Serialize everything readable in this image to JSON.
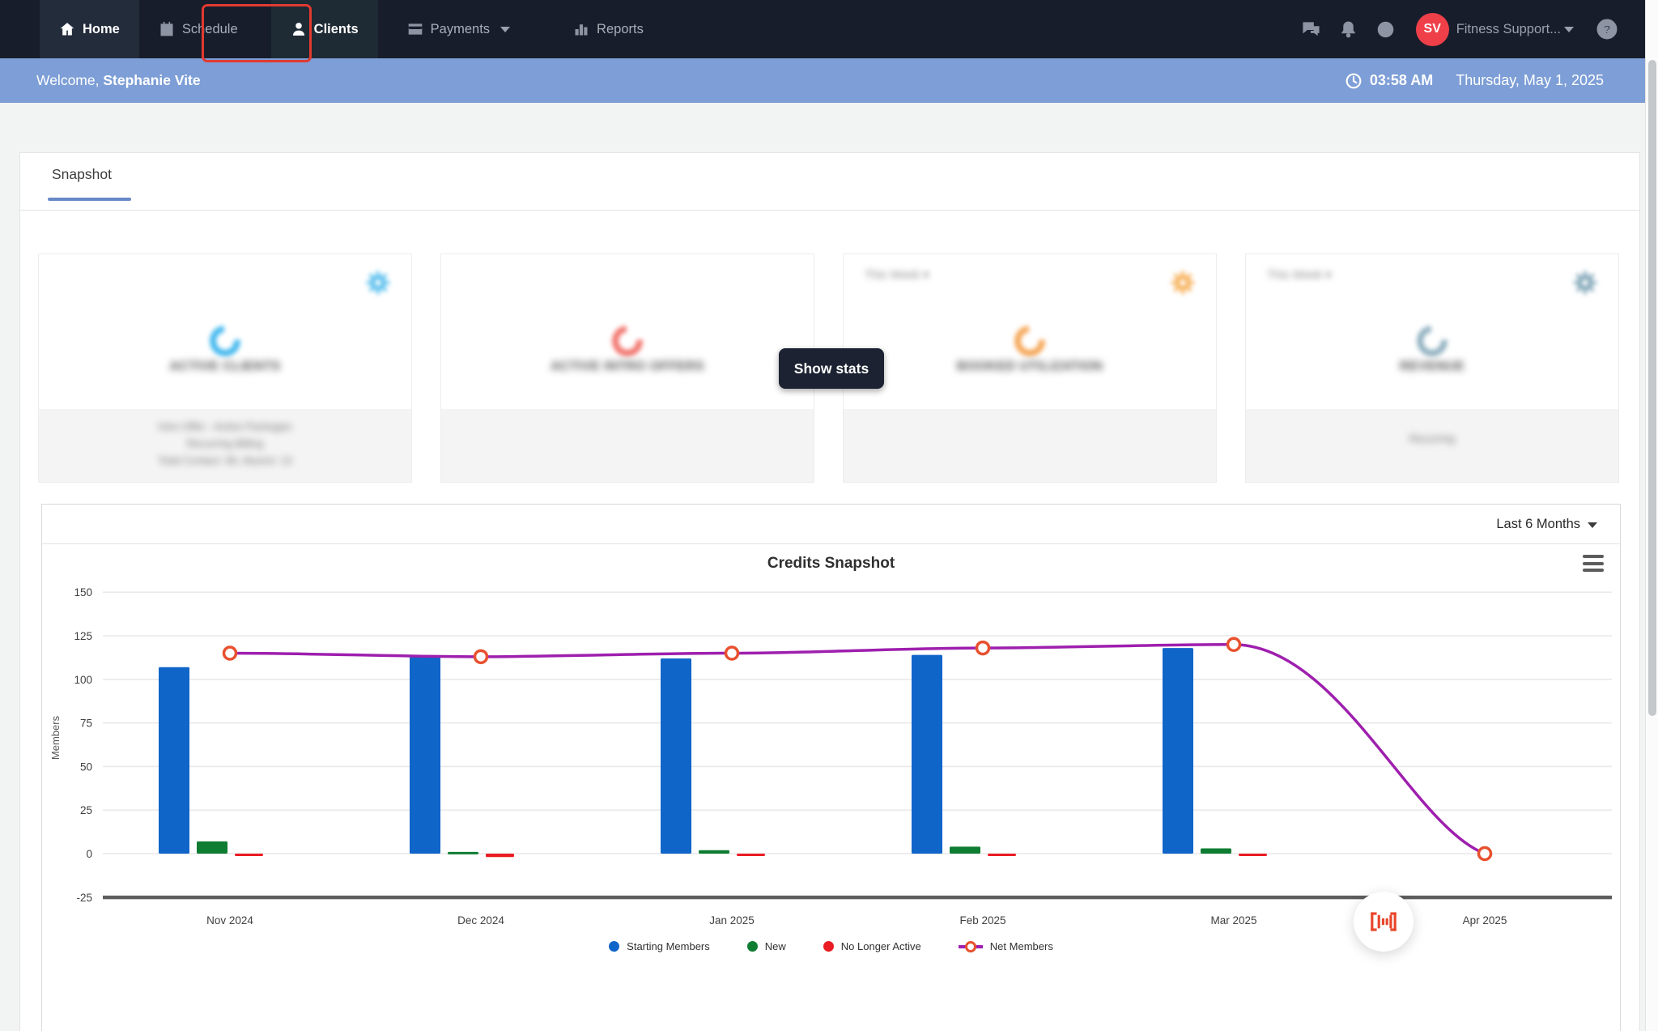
{
  "nav": {
    "items": [
      {
        "label": "Home",
        "icon": "home"
      },
      {
        "label": "Schedule",
        "icon": "calendar"
      },
      {
        "label": "Clients",
        "icon": "person"
      },
      {
        "label": "Payments",
        "icon": "credit-card"
      },
      {
        "label": "Reports",
        "icon": "bar-chart"
      }
    ],
    "user_initials": "SV",
    "user_name": "Fitness Support...",
    "avatar_color": "#ef4049"
  },
  "welcome_bar": {
    "greeting": "Welcome, ",
    "user_name": "Stephanie Vite",
    "time": "03:58 AM",
    "date": "Thursday, May 1, 2025",
    "bg_color": "#7d9ed6"
  },
  "tabs": {
    "active_tab": "Snapshot"
  },
  "overlay": {
    "show_stats_label": "Show stats"
  },
  "stat_cards": [
    {
      "title": "ACTIVE CLIENTS",
      "accent": "#45b9ee",
      "footer_lines": [
        "Intro Offer - Active Packages",
        "Recurring Billing",
        "Total Contact: 96, Alumni: 13"
      ]
    },
    {
      "title": "ACTIVE INTRO OFFERS",
      "accent": "#f2766f",
      "footer_lines": []
    },
    {
      "title": "BOOKED UTILIZATION",
      "accent": "#f5a85a",
      "period": "This Week",
      "footer_lines": []
    },
    {
      "title": "REVENUE",
      "accent": "#93b3c2",
      "period": "This Week",
      "footer_lines": [
        "Recurring"
      ]
    }
  ],
  "chart_panel": {
    "range_selector": "Last 6 Months"
  },
  "chart_data": {
    "type": "combo-bar-line",
    "title": "Credits Snapshot",
    "ylabel": "Members",
    "categories": [
      "Nov 2024",
      "Dec 2024",
      "Jan 2025",
      "Feb 2025",
      "Mar 2025",
      "Apr 2025"
    ],
    "series": [
      {
        "name": "Starting Members",
        "type": "bar",
        "color": "#1065c9",
        "values": [
          107,
          113,
          112,
          114,
          118,
          null
        ]
      },
      {
        "name": "New",
        "type": "bar",
        "color": "#0e7d32",
        "values": [
          7,
          1,
          2,
          4,
          3,
          null
        ]
      },
      {
        "name": "No Longer Active",
        "type": "bar",
        "color": "#ea1c24",
        "values": [
          -1,
          -2,
          -1,
          -1,
          -1,
          null
        ]
      },
      {
        "name": "Net Members",
        "type": "line",
        "color": "#9e1fae",
        "marker_color": "#e8502e",
        "values": [
          115,
          113,
          115,
          118,
          120,
          0
        ]
      }
    ],
    "yticks": [
      150,
      125,
      100,
      75,
      50,
      25,
      0,
      -25
    ],
    "ylim": [
      -25,
      150
    ],
    "grid": true,
    "legend_position": "bottom",
    "loading_indicator": true
  }
}
